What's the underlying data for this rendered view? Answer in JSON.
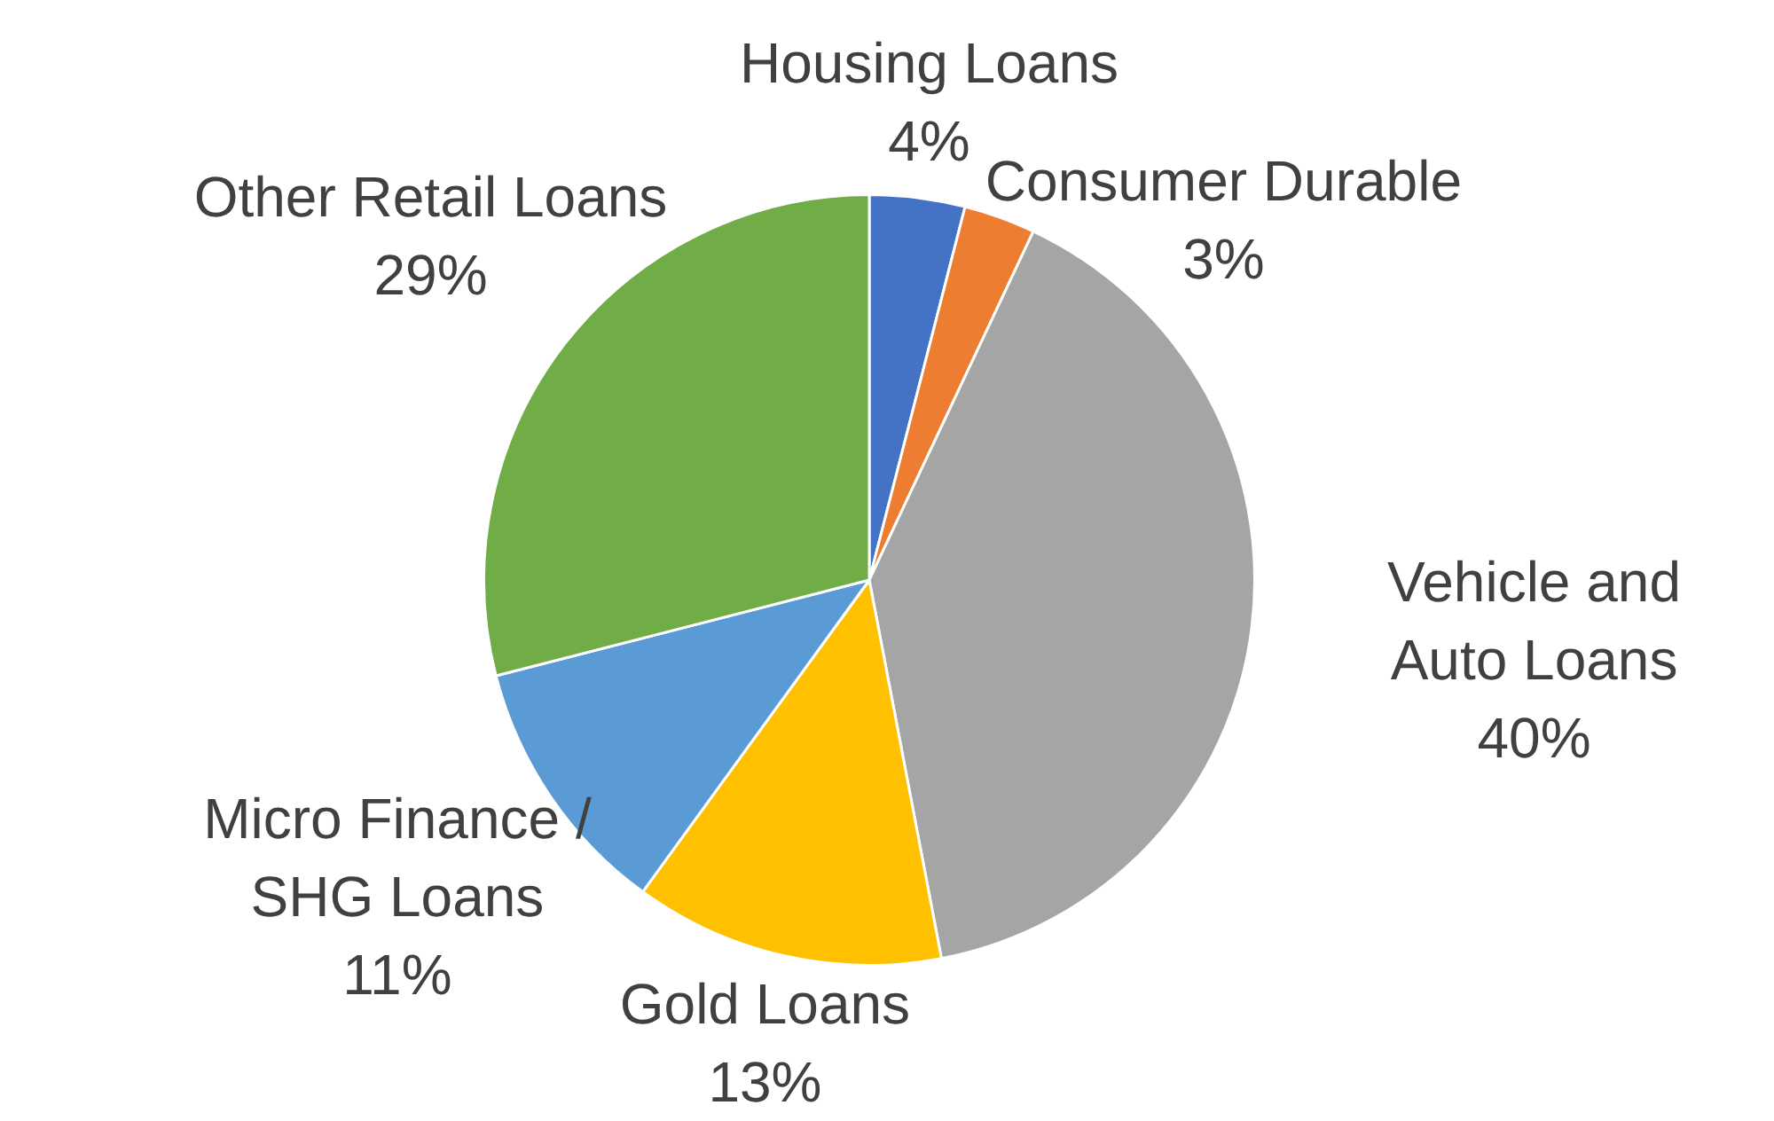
{
  "chart_data": {
    "type": "pie",
    "categories": [
      "Housing Loans",
      "Consumer Durable",
      "Vehicle and Auto Loans",
      "Gold Loans",
      "Micro Finance / SHG Loans",
      "Other Retail Loans"
    ],
    "values": [
      4,
      3,
      40,
      13,
      11,
      29
    ],
    "value_labels": [
      "4%",
      "3%",
      "40%",
      "13%",
      "11%",
      "29%"
    ],
    "colors": [
      "#4472c4",
      "#ed7d31",
      "#a5a5a5",
      "#ffc000",
      "#5b9bd5",
      "#70ad47"
    ],
    "legend": false
  }
}
